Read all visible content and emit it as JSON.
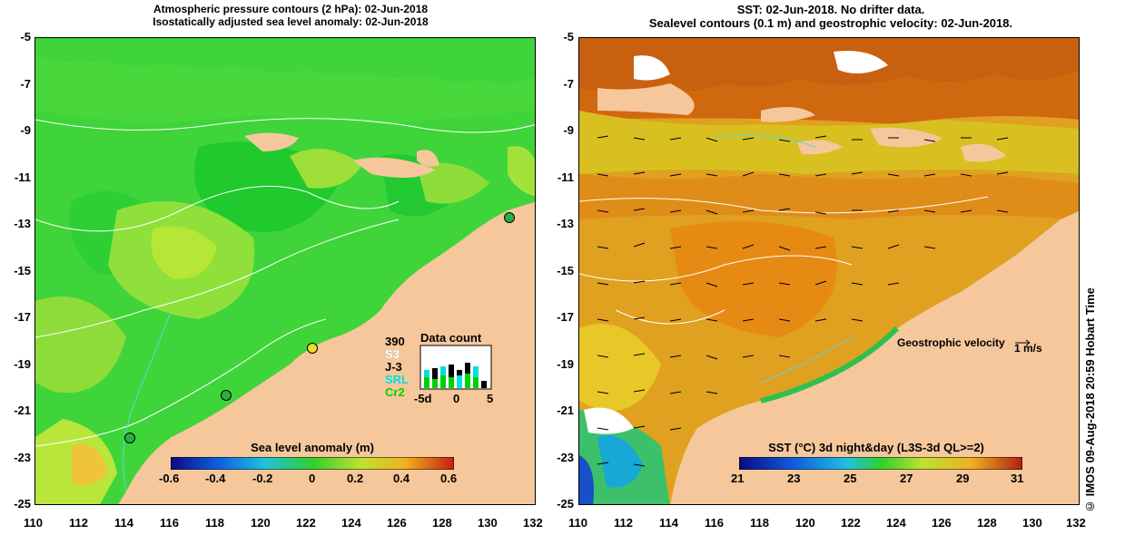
{
  "left": {
    "title_line1": "Atmospheric pressure contours (2 hPa): 02-Jun-2018",
    "title_line2": "Isostatically adjusted sea level anomaly: 02-Jun-2018",
    "colorbar": {
      "label": "Sea level anomaly (m)",
      "ticks": [
        "-0.6",
        "-0.4",
        "-0.2",
        "0",
        "0.2",
        "0.4",
        "0.6"
      ]
    },
    "legend": {
      "title": "Data count",
      "count_value": "390",
      "entries": [
        {
          "label": "S3",
          "color": "#ffffff"
        },
        {
          "label": "J-3",
          "color": "#000000"
        },
        {
          "label": "SRL",
          "color": "#00e0e0"
        },
        {
          "label": "Cr2",
          "color": "#00d000"
        }
      ],
      "x_ticks": [
        "-5d",
        "0",
        "5"
      ]
    }
  },
  "right": {
    "title_line1": "SST: 02-Jun-2018. No drifter data.",
    "title_line2": "Sealevel contours (0.1 m) and geostrophic velocity: 02-Jun-2018.",
    "velocity_label": "Geostrophic velocity",
    "velocity_scale": "1 m/s",
    "colorbar": {
      "label": "SST (°C) 3d night&day (L3S-3d QL>=2)",
      "ticks": [
        "21",
        "23",
        "25",
        "27",
        "29",
        "31"
      ]
    }
  },
  "axes": {
    "y_ticks": [
      "-5",
      "-7",
      "-9",
      "-11",
      "-13",
      "-15",
      "-17",
      "-19",
      "-21",
      "-23",
      "-25"
    ],
    "x_ticks": [
      "110",
      "112",
      "114",
      "116",
      "118",
      "120",
      "122",
      "124",
      "126",
      "128",
      "130",
      "132"
    ]
  },
  "sidebar_text": "© IMOS 09-Aug-2018 20:59 Hobart Time"
}
